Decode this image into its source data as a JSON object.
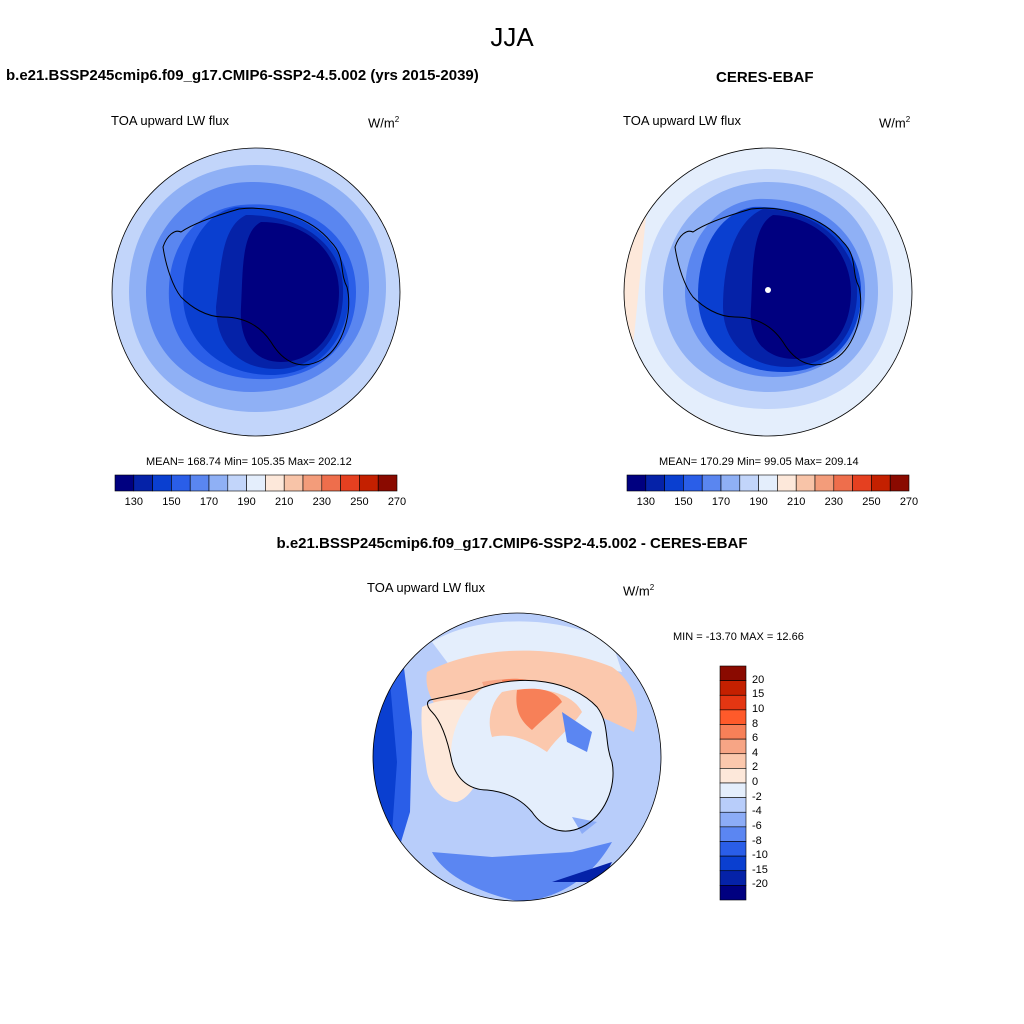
{
  "figure": {
    "season": "JJA"
  },
  "panels": [
    {
      "id": "model",
      "title": "b.e21.BSSP245cmip6.f09_g17.CMIP6-SSP2-4.5.002 (yrs 2015-2039)",
      "variable": "TOA upward LW flux",
      "units": "W/m",
      "units_sup": "2",
      "stats": "MEAN= 168.74  Min= 105.35  Max= 202.12",
      "mean": 168.74,
      "min": 105.35,
      "max": 202.12
    },
    {
      "id": "obs",
      "title": "CERES-EBAF",
      "variable": "TOA upward LW flux",
      "units": "W/m",
      "units_sup": "2",
      "stats": "MEAN= 170.29  Min=  99.05  Max= 209.14",
      "mean": 170.29,
      "min": 99.05,
      "max": 209.14
    },
    {
      "id": "diff",
      "title": "b.e21.BSSP245cmip6.f09_g17.CMIP6-SSP2-4.5.002 - CERES-EBAF",
      "variable": "TOA upward LW flux",
      "units": "W/m",
      "units_sup": "2",
      "stats": "MIN = -13.70 MAX =  12.66",
      "min": -13.7,
      "max": 12.66
    }
  ],
  "colorbar_abs": {
    "tick_labels": [
      "130",
      "150",
      "170",
      "190",
      "210",
      "230",
      "250",
      "270"
    ],
    "colors": [
      "#000080",
      "#0522a8",
      "#0a3fd0",
      "#2a5ee8",
      "#5a86f0",
      "#8fb0f5",
      "#c2d5fa",
      "#e4eefc",
      "#fde8da",
      "#f8c4a8",
      "#f39c7a",
      "#ee6e4c",
      "#e54020",
      "#c42000",
      "#8a0a00"
    ]
  },
  "colorbar_diff": {
    "tick_labels": [
      "20",
      "15",
      "10",
      "8",
      "6",
      "4",
      "2",
      "0",
      "-2",
      "-4",
      "-6",
      "-8",
      "-10",
      "-15",
      "-20"
    ],
    "colors": [
      "#8a0a00",
      "#c42000",
      "#e43612",
      "#ff5a2a",
      "#f78058",
      "#f7a585",
      "#fbc8ad",
      "#fde8da",
      "#e4eefc",
      "#b8cdfa",
      "#8cacf7",
      "#5b86f2",
      "#2a5ee8",
      "#0a3fd0",
      "#0522a8",
      "#000080"
    ]
  }
}
